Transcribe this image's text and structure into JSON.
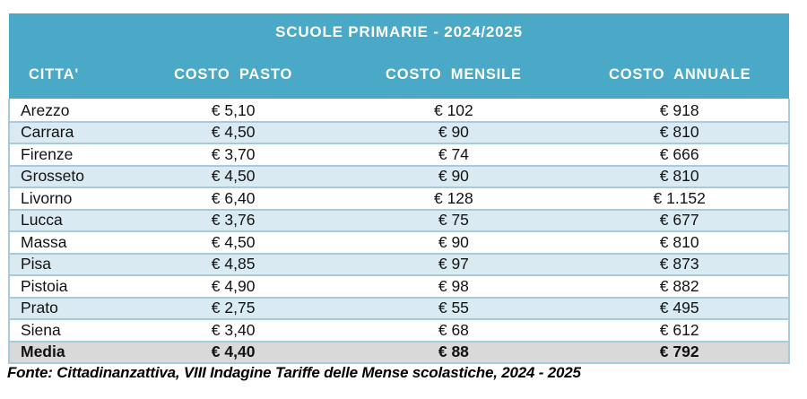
{
  "chart_data": {
    "type": "table",
    "title": "SCUOLE PRIMARIE - 2024/2025",
    "columns": [
      "CITTA'",
      "COSTO PASTO",
      "COSTO MENSILE",
      "COSTO ANNUALE"
    ],
    "rows": [
      {
        "city": "Arezzo",
        "costo_pasto": "€ 5,10",
        "costo_mensile": "€ 102",
        "costo_annuale": "€ 918"
      },
      {
        "city": "Carrara",
        "costo_pasto": "€ 4,50",
        "costo_mensile": "€ 90",
        "costo_annuale": "€ 810"
      },
      {
        "city": "Firenze",
        "costo_pasto": "€ 3,70",
        "costo_mensile": "€ 74",
        "costo_annuale": "€ 666"
      },
      {
        "city": "Grosseto",
        "costo_pasto": "€ 4,50",
        "costo_mensile": "€ 90",
        "costo_annuale": "€ 810"
      },
      {
        "city": "Livorno",
        "costo_pasto": "€ 6,40",
        "costo_mensile": "€ 128",
        "costo_annuale": "€ 1.152"
      },
      {
        "city": "Lucca",
        "costo_pasto": "€ 3,76",
        "costo_mensile": "€ 75",
        "costo_annuale": "€ 677"
      },
      {
        "city": "Massa",
        "costo_pasto": "€ 4,50",
        "costo_mensile": "€ 90",
        "costo_annuale": "€ 810"
      },
      {
        "city": "Pisa",
        "costo_pasto": "€ 4,85",
        "costo_mensile": "€ 97",
        "costo_annuale": "€ 873"
      },
      {
        "city": "Pistoia",
        "costo_pasto": "€ 4,90",
        "costo_mensile": "€ 98",
        "costo_annuale": "€ 882"
      },
      {
        "city": "Prato",
        "costo_pasto": "€ 2,75",
        "costo_mensile": "€ 55",
        "costo_annuale": "€ 495"
      },
      {
        "city": "Siena",
        "costo_pasto": "€ 3,40",
        "costo_mensile": "€ 68",
        "costo_annuale": "€ 612"
      },
      {
        "city": "Media",
        "costo_pasto": "€ 4,40",
        "costo_mensile": "€ 88",
        "costo_annuale": "€ 792"
      }
    ],
    "source": "Fonte: Cittadinanzattiva, VIII Indagine Tariffe delle Mense scolastiche, 2024 - 2025",
    "colors": {
      "header_bg": "#4AA9C6",
      "header_text": "#ffffff",
      "row_bg": "#ffffff",
      "row_alt_bg": "#D9EAF3",
      "row_border": "#A6CBDC",
      "media_row_bg": "#D9D9D9",
      "body_text": "#121212"
    },
    "layout": {
      "row_striping": "alternating white / light blue",
      "last_row_highlight": "gray background, bold text (Media row)",
      "value_alignment": "city left-aligned, costs centered"
    }
  }
}
